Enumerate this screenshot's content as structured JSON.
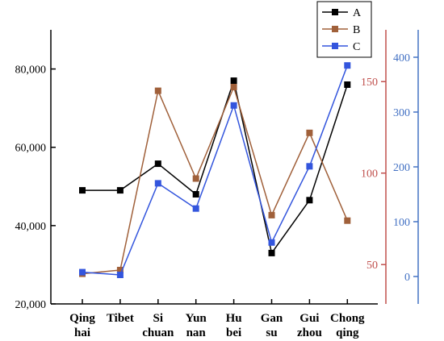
{
  "chart_data": {
    "type": "line",
    "title": "",
    "xlabel": "",
    "ylabel": "",
    "categories": [
      [
        "Qing",
        "hai"
      ],
      [
        "Tibet",
        ""
      ],
      [
        "Si",
        "chuan"
      ],
      [
        "Yun",
        "nan"
      ],
      [
        "Hu",
        "bei"
      ],
      [
        "Gan",
        "su"
      ],
      [
        "Gui",
        "zhou"
      ],
      [
        "Chong",
        "qing"
      ]
    ],
    "axes": {
      "left": {
        "ylim": [
          20000,
          90000
        ],
        "ticks": [
          20000,
          40000,
          60000,
          80000
        ],
        "tick_labels": [
          "20,000",
          "40,000",
          "60,000",
          "80,000"
        ],
        "color": "#000000"
      },
      "right_b": {
        "ylim": [
          28.5,
          178.3
        ],
        "ticks": [
          50,
          100,
          150
        ],
        "tick_labels": [
          "50",
          "100",
          "150"
        ],
        "color": "#c0504d"
      },
      "right_c": {
        "ylim": [
          -50,
          450
        ],
        "ticks": [
          0,
          100,
          200,
          300,
          400
        ],
        "tick_labels": [
          "0",
          "100",
          "200",
          "300",
          "400"
        ],
        "color": "#4472c4"
      }
    },
    "series": [
      {
        "name": "A",
        "axis": "left",
        "color": "#000000",
        "values": [
          49000,
          49000,
          55800,
          48000,
          77000,
          33000,
          46500,
          76000
        ]
      },
      {
        "name": "B",
        "axis": "right_b",
        "color": "#a0603a",
        "values": [
          45,
          47,
          145,
          97,
          147,
          77,
          122,
          74
        ]
      },
      {
        "name": "C",
        "axis": "right_c",
        "color": "#3355dd",
        "values": [
          8,
          3,
          170,
          124,
          312,
          62,
          201,
          385
        ]
      }
    ],
    "legend": {
      "position": "top-right"
    },
    "grid": false
  }
}
